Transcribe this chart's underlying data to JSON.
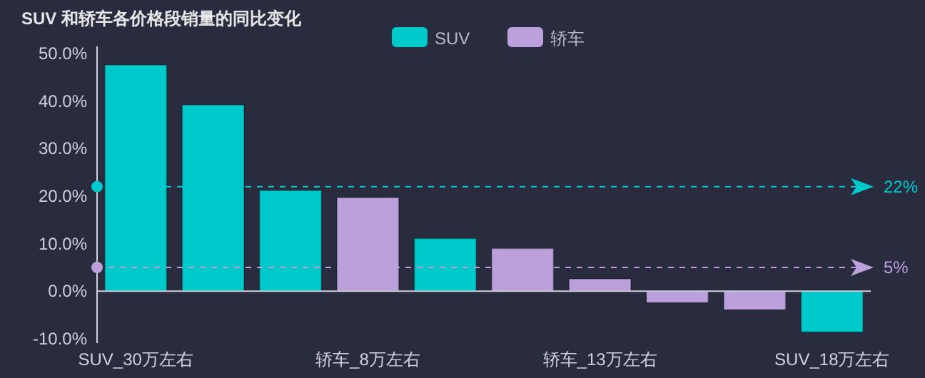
{
  "chart_data": {
    "type": "bar",
    "title": "SUV 和轿车各价格段销量的同比变化",
    "categories": [
      "SUV_30万左右",
      null,
      null,
      "轿车_8万左右",
      null,
      null,
      "轿车_13万左右",
      null,
      null,
      "SUV_18万左右"
    ],
    "stacked": true,
    "series": [
      {
        "name": "SUV",
        "color": "#00c9cc",
        "values": [
          47.6,
          39.2,
          21.2,
          null,
          11.1,
          null,
          null,
          null,
          null,
          -8.6
        ]
      },
      {
        "name": "轿车",
        "color": "#bba0db",
        "values": [
          null,
          null,
          null,
          19.7,
          null,
          9.0,
          2.6,
          -2.4,
          -3.9,
          null
        ]
      }
    ],
    "ylim": [
      -10,
      50
    ],
    "yticks": [
      {
        "value": -10,
        "label": "-10.0%"
      },
      {
        "value": 0,
        "label": "0.0%"
      },
      {
        "value": 10,
        "label": "10.0%"
      },
      {
        "value": 20,
        "label": "20.0%"
      },
      {
        "value": 30,
        "label": "30.0%"
      },
      {
        "value": 40,
        "label": "40.0%"
      },
      {
        "value": 50,
        "label": "50.0%"
      }
    ],
    "ref_lines": [
      {
        "axis": "y",
        "value": 22,
        "label": "22%",
        "color": "#00c9cc",
        "line_style": "dashed"
      },
      {
        "axis": "y",
        "value": 5,
        "label": "5%",
        "color": "#bba0db",
        "line_style": "dashed"
      }
    ],
    "legend": "top"
  }
}
